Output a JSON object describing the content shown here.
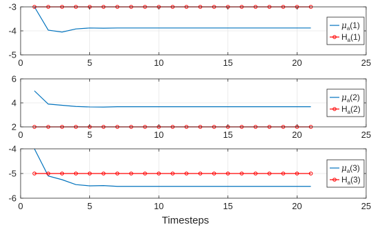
{
  "chart_data": [
    {
      "type": "line",
      "xlim": [
        0,
        25
      ],
      "ylim": [
        -5,
        -3
      ],
      "xticks": [
        0,
        5,
        10,
        15,
        20,
        25
      ],
      "yticks": [
        -5,
        -4,
        -3
      ],
      "xtick_labels": [
        "0",
        "5",
        "10",
        "15",
        "20",
        "25"
      ],
      "ytick_labels": [
        "-5",
        "-4",
        "-3"
      ],
      "grid": true,
      "legend_position": "right",
      "series": [
        {
          "name_parts": [
            "μ",
            "a",
            "(1)"
          ],
          "color": "#0072BD",
          "marker": "none",
          "x": [
            1,
            2,
            3,
            4,
            5,
            6,
            7,
            8,
            9,
            10,
            11,
            12,
            13,
            14,
            15,
            16,
            17,
            18,
            19,
            20,
            21
          ],
          "y": [
            -3.0,
            -3.97,
            -4.05,
            -3.92,
            -3.88,
            -3.89,
            -3.88,
            -3.88,
            -3.88,
            -3.88,
            -3.88,
            -3.88,
            -3.88,
            -3.88,
            -3.88,
            -3.88,
            -3.88,
            -3.88,
            -3.88,
            -3.88,
            -3.88
          ]
        },
        {
          "name_parts": [
            "H",
            "a",
            "(1)"
          ],
          "color": "#FF0000",
          "marker": "circle",
          "x": [
            1,
            2,
            3,
            4,
            5,
            6,
            7,
            8,
            9,
            10,
            11,
            12,
            13,
            14,
            15,
            16,
            17,
            18,
            19,
            20,
            21
          ],
          "y": [
            -3,
            -3,
            -3,
            -3,
            -3,
            -3,
            -3,
            -3,
            -3,
            -3,
            -3,
            -3,
            -3,
            -3,
            -3,
            -3,
            -3,
            -3,
            -3,
            -3,
            -3
          ]
        }
      ]
    },
    {
      "type": "line",
      "xlim": [
        0,
        25
      ],
      "ylim": [
        2,
        6
      ],
      "xticks": [
        0,
        5,
        10,
        15,
        20,
        25
      ],
      "yticks": [
        2,
        4,
        6
      ],
      "xtick_labels": [
        "0",
        "5",
        "10",
        "15",
        "20",
        "25"
      ],
      "ytick_labels": [
        "2",
        "4",
        "6"
      ],
      "grid": true,
      "legend_position": "right",
      "series": [
        {
          "name_parts": [
            "μ",
            "a",
            "(2)"
          ],
          "color": "#0072BD",
          "marker": "none",
          "x": [
            1,
            2,
            3,
            4,
            5,
            6,
            7,
            8,
            9,
            10,
            11,
            12,
            13,
            14,
            15,
            16,
            17,
            18,
            19,
            20,
            21
          ],
          "y": [
            5.0,
            3.9,
            3.8,
            3.7,
            3.66,
            3.65,
            3.68,
            3.68,
            3.68,
            3.68,
            3.68,
            3.68,
            3.68,
            3.68,
            3.68,
            3.68,
            3.68,
            3.68,
            3.68,
            3.68,
            3.68
          ]
        },
        {
          "name_parts": [
            "H",
            "a",
            "(2)"
          ],
          "color": "#FF0000",
          "marker": "circle",
          "x": [
            1,
            2,
            3,
            4,
            5,
            6,
            7,
            8,
            9,
            10,
            11,
            12,
            13,
            14,
            15,
            16,
            17,
            18,
            19,
            20,
            21
          ],
          "y": [
            2,
            2,
            2,
            2,
            2,
            2,
            2,
            2,
            2,
            2,
            2,
            2,
            2,
            2,
            2,
            2,
            2,
            2,
            2,
            2,
            2
          ]
        }
      ]
    },
    {
      "type": "line",
      "xlim": [
        0,
        25
      ],
      "ylim": [
        -6,
        -4
      ],
      "xticks": [
        0,
        5,
        10,
        15,
        20,
        25
      ],
      "yticks": [
        -6,
        -5,
        -4
      ],
      "xtick_labels": [
        "0",
        "5",
        "10",
        "15",
        "20",
        "25"
      ],
      "ytick_labels": [
        "-6",
        "-5",
        "-4"
      ],
      "grid": true,
      "legend_position": "right",
      "xlabel": "Timesteps",
      "series": [
        {
          "name_parts": [
            "μ",
            "a",
            "(3)"
          ],
          "color": "#0072BD",
          "marker": "none",
          "x": [
            1,
            2,
            3,
            4,
            5,
            6,
            7,
            8,
            9,
            10,
            11,
            12,
            13,
            14,
            15,
            16,
            17,
            18,
            19,
            20,
            21
          ],
          "y": [
            -4.0,
            -5.1,
            -5.25,
            -5.45,
            -5.5,
            -5.49,
            -5.52,
            -5.52,
            -5.52,
            -5.52,
            -5.52,
            -5.52,
            -5.52,
            -5.52,
            -5.52,
            -5.52,
            -5.52,
            -5.52,
            -5.52,
            -5.52,
            -5.52
          ]
        },
        {
          "name_parts": [
            "H",
            "a",
            "(3)"
          ],
          "color": "#FF0000",
          "marker": "circle",
          "x": [
            1,
            2,
            3,
            4,
            5,
            6,
            7,
            8,
            9,
            10,
            11,
            12,
            13,
            14,
            15,
            16,
            17,
            18,
            19,
            20,
            21
          ],
          "y": [
            -5,
            -5,
            -5,
            -5,
            -5,
            -5,
            -5,
            -5,
            -5,
            -5,
            -5,
            -5,
            -5,
            -5,
            -5,
            -5,
            -5,
            -5,
            -5,
            -5,
            -5
          ]
        }
      ]
    }
  ],
  "colors": {
    "axis": "#262626",
    "grid": "#e6e6e6",
    "background": "#ffffff",
    "legend_border": "#262626"
  }
}
